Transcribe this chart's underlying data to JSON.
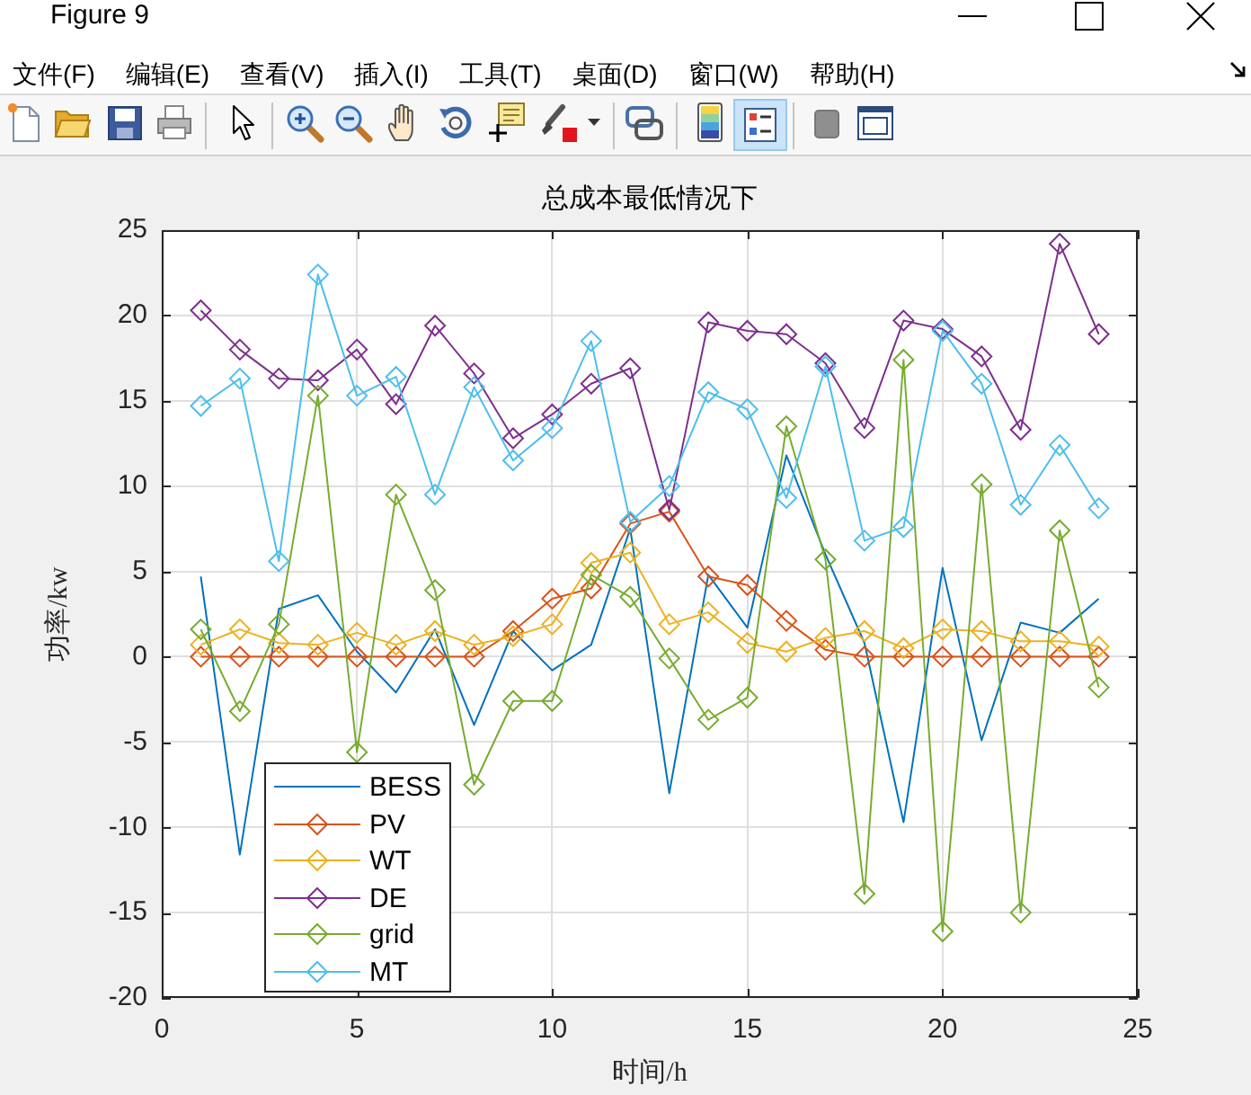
{
  "chart_data": {
    "type": "line",
    "title": "总成本最低情况下",
    "xlabel": "时间/h",
    "ylabel": "功率/kw",
    "x": [
      1,
      2,
      3,
      4,
      5,
      6,
      7,
      8,
      9,
      10,
      11,
      12,
      13,
      14,
      15,
      16,
      17,
      18,
      19,
      20,
      21,
      22,
      23,
      24
    ],
    "series": [
      {
        "name": "BESS",
        "color": "#0072bd",
        "marker": "none",
        "values": [
          4.7,
          -11.6,
          2.8,
          3.6,
          0.3,
          -2.1,
          1.6,
          -4.0,
          1.5,
          -0.8,
          0.7,
          7.5,
          -8.0,
          4.8,
          1.7,
          11.8,
          6.0,
          0.8,
          -9.7,
          5.2,
          -4.9,
          2.0,
          1.4,
          3.4
        ]
      },
      {
        "name": "PV",
        "color": "#d95319",
        "values": [
          0,
          0,
          0,
          0,
          0,
          0,
          0,
          0,
          1.5,
          3.4,
          4.0,
          7.8,
          8.5,
          4.7,
          4.2,
          2.1,
          0.4,
          0,
          0,
          0,
          0,
          0,
          0,
          0
        ]
      },
      {
        "name": "WT",
        "color": "#edb120",
        "values": [
          0.7,
          1.6,
          0.8,
          0.7,
          1.4,
          0.7,
          1.5,
          0.7,
          1.2,
          1.9,
          5.5,
          6.1,
          1.9,
          2.6,
          0.8,
          0.3,
          1.1,
          1.5,
          0.5,
          1.6,
          1.5,
          0.9,
          0.9,
          0.6
        ]
      },
      {
        "name": "DE",
        "color": "#7e2f8e",
        "values": [
          20.3,
          18.0,
          16.3,
          16.2,
          18.0,
          14.8,
          19.4,
          16.6,
          12.8,
          14.2,
          16.0,
          16.9,
          8.6,
          19.6,
          19.1,
          18.9,
          17.2,
          13.4,
          19.7,
          19.2,
          17.6,
          13.3,
          24.2,
          18.9
        ]
      },
      {
        "name": "grid",
        "color": "#77ac30",
        "values": [
          1.6,
          -3.2,
          1.9,
          15.3,
          -5.6,
          9.5,
          3.9,
          -7.5,
          -2.6,
          -2.6,
          4.8,
          3.5,
          -0.1,
          -3.7,
          -2.4,
          13.5,
          5.7,
          -13.9,
          17.4,
          -16.1,
          10.1,
          -15.0,
          7.4,
          -1.8
        ]
      },
      {
        "name": "MT",
        "color": "#4dbeee",
        "values": [
          14.7,
          16.3,
          5.6,
          22.4,
          15.3,
          16.4,
          9.5,
          15.8,
          11.5,
          13.4,
          18.5,
          7.9,
          10.0,
          15.5,
          14.5,
          9.3,
          17.0,
          6.8,
          7.6,
          19.1,
          16.0,
          8.9,
          12.4,
          8.7
        ]
      }
    ],
    "xlim": [
      0,
      25
    ],
    "ylim": [
      -20,
      25
    ],
    "xticks": [
      0,
      5,
      10,
      15,
      20,
      25
    ],
    "yticks": [
      -20,
      -15,
      -10,
      -5,
      0,
      5,
      10,
      15,
      20,
      25
    ],
    "grid": true,
    "legend": "bottom left",
    "marker": "diamond",
    "annotations": [
      "Figure 9",
      "文件(F)",
      "编辑(E)",
      "查看(V)",
      "插入(I)",
      "工具(T)",
      "桌面(D)",
      "窗口(W)",
      "帮助(H)"
    ]
  }
}
